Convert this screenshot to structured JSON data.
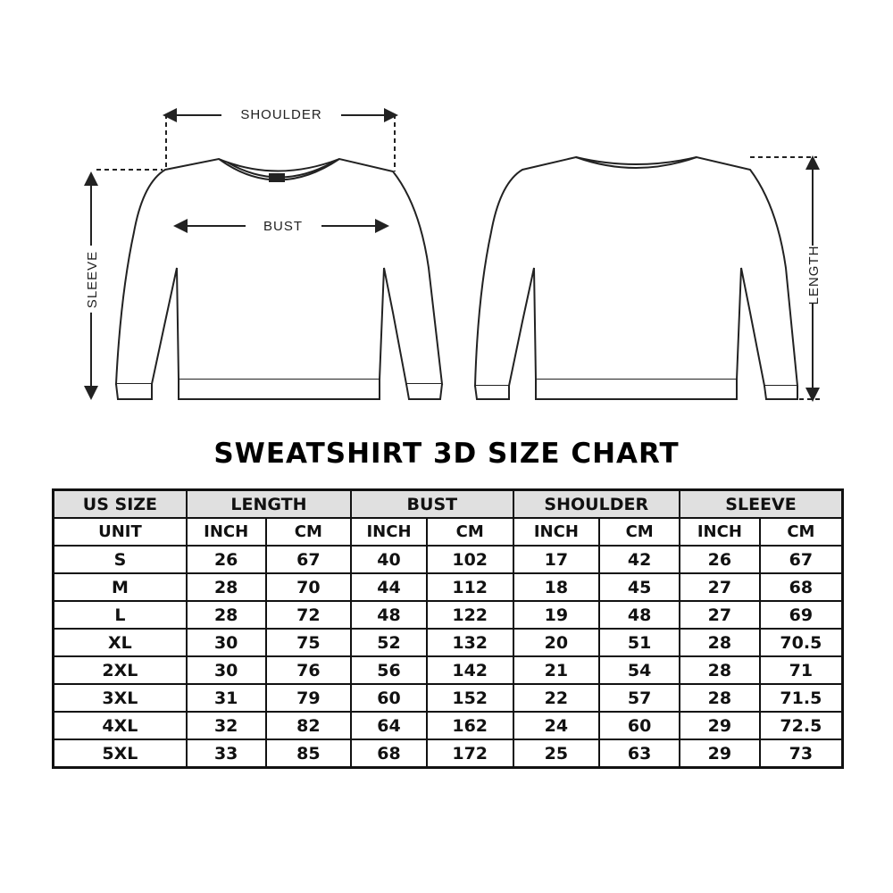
{
  "diagram": {
    "front_labels": {
      "shoulder": "SHOULDER",
      "bust": "BUST",
      "sleeve": "SLEEVE"
    },
    "back_labels": {
      "length": "LENGTH"
    }
  },
  "title": "SWEATSHIRT 3D SIZE CHART",
  "table": {
    "group_headers": [
      "US SIZE",
      "LENGTH",
      "BUST",
      "SHOULDER",
      "SLEEVE"
    ],
    "unit_row": [
      "UNIT",
      "INCH",
      "CM",
      "INCH",
      "CM",
      "INCH",
      "CM",
      "INCH",
      "CM"
    ],
    "rows": [
      [
        "S",
        "26",
        "67",
        "40",
        "102",
        "17",
        "42",
        "26",
        "67"
      ],
      [
        "M",
        "28",
        "70",
        "44",
        "112",
        "18",
        "45",
        "27",
        "68"
      ],
      [
        "L",
        "28",
        "72",
        "48",
        "122",
        "19",
        "48",
        "27",
        "69"
      ],
      [
        "XL",
        "30",
        "75",
        "52",
        "132",
        "20",
        "51",
        "28",
        "70.5"
      ],
      [
        "2XL",
        "30",
        "76",
        "56",
        "142",
        "21",
        "54",
        "28",
        "71"
      ],
      [
        "3XL",
        "31",
        "79",
        "60",
        "152",
        "22",
        "57",
        "28",
        "71.5"
      ],
      [
        "4XL",
        "32",
        "82",
        "64",
        "162",
        "24",
        "60",
        "29",
        "72.5"
      ],
      [
        "5XL",
        "33",
        "85",
        "68",
        "172",
        "25",
        "63",
        "29",
        "73"
      ]
    ]
  },
  "colors": {
    "header_bg": "#e0e0e0",
    "border": "#111111"
  }
}
